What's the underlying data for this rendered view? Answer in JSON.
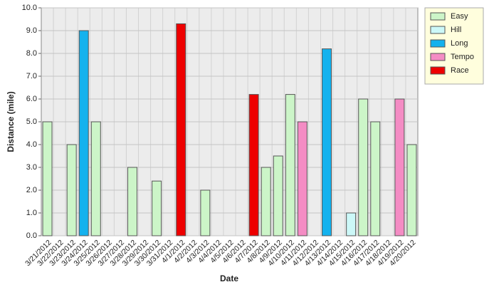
{
  "chart_data": {
    "type": "bar",
    "x_label": "Date",
    "y_label": "Distance (mile)",
    "categories": [
      "3/21/2012",
      "3/22/2012",
      "3/23/2012",
      "3/24/2012",
      "3/25/2012",
      "3/26/2012",
      "3/27/2012",
      "3/28/2012",
      "3/29/2012",
      "3/30/2012",
      "3/31/2012",
      "4/1/2012",
      "4/2/2012",
      "4/3/2012",
      "4/4/2012",
      "4/5/2012",
      "4/6/2012",
      "4/7/2012",
      "4/8/2012",
      "4/9/2012",
      "4/10/2012",
      "4/11/2012",
      "4/12/2012",
      "4/13/2012",
      "4/14/2012",
      "4/15/2012",
      "4/16/2012",
      "4/17/2012",
      "4/18/2012",
      "4/19/2012",
      "4/20/2012"
    ],
    "series": [
      {
        "name": "Easy",
        "color": "#ccf5c8",
        "values": [
          5.0,
          null,
          4.0,
          null,
          5.0,
          null,
          null,
          3.0,
          null,
          2.4,
          null,
          null,
          null,
          2.0,
          null,
          null,
          null,
          null,
          3.0,
          3.5,
          6.2,
          null,
          null,
          null,
          null,
          null,
          6.0,
          5.0,
          null,
          null,
          4.0
        ]
      },
      {
        "name": "Hill",
        "color": "#ccf8f8",
        "values": [
          null,
          null,
          null,
          null,
          null,
          null,
          null,
          null,
          null,
          null,
          null,
          null,
          null,
          null,
          null,
          null,
          null,
          null,
          null,
          null,
          null,
          null,
          null,
          null,
          null,
          1.0,
          null,
          null,
          null,
          null,
          null
        ]
      },
      {
        "name": "Long",
        "color": "#14b2ee",
        "values": [
          null,
          null,
          null,
          9.0,
          null,
          null,
          null,
          null,
          null,
          null,
          null,
          null,
          null,
          null,
          null,
          null,
          null,
          null,
          null,
          null,
          null,
          null,
          null,
          8.2,
          null,
          null,
          null,
          null,
          null,
          null,
          null
        ]
      },
      {
        "name": "Tempo",
        "color": "#f48cc4",
        "values": [
          null,
          null,
          null,
          null,
          null,
          null,
          null,
          null,
          null,
          null,
          null,
          null,
          null,
          null,
          null,
          null,
          null,
          null,
          null,
          null,
          null,
          5.0,
          null,
          null,
          null,
          null,
          null,
          null,
          null,
          6.0,
          null
        ]
      },
      {
        "name": "Race",
        "color": "#ee0000",
        "values": [
          null,
          null,
          null,
          null,
          null,
          null,
          null,
          null,
          null,
          null,
          null,
          9.3,
          null,
          null,
          null,
          null,
          null,
          6.2,
          null,
          null,
          null,
          null,
          null,
          null,
          null,
          null,
          null,
          null,
          null,
          null,
          null
        ]
      }
    ],
    "ylim": [
      0,
      10
    ],
    "yticks": [
      {
        "value": 0,
        "label": "0.0"
      },
      {
        "value": 1,
        "label": "1.0"
      },
      {
        "value": 2,
        "label": "2.0"
      },
      {
        "value": 3,
        "label": "3.0"
      },
      {
        "value": 4,
        "label": "4.0"
      },
      {
        "value": 5,
        "label": "5.0"
      },
      {
        "value": 6,
        "label": "6.0"
      },
      {
        "value": 7,
        "label": "7.0"
      },
      {
        "value": 8,
        "label": "8.0"
      },
      {
        "value": 9,
        "label": "9.0"
      },
      {
        "value": 10,
        "label": "10.0"
      }
    ],
    "grid": true,
    "legend": "right"
  }
}
